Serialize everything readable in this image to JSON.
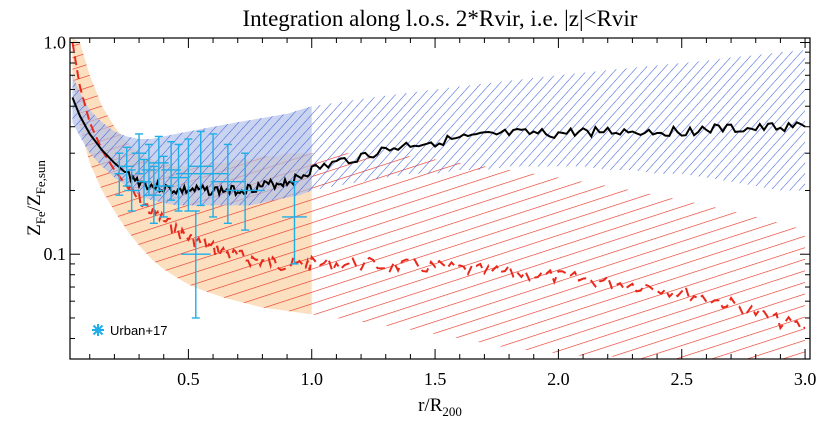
{
  "chart_data": {
    "type": "line",
    "title": "Integration along l.o.s. 2*Rvir, i.e. |z|<Rvir",
    "xlabel": {
      "main": "r/R",
      "sub": "200"
    },
    "ylabel": {
      "main1": "Z",
      "sub1": "Fe",
      "mid": "/Z",
      "sub2": "Fe,sun"
    },
    "xlim": [
      0.02,
      3.02
    ],
    "ylim": [
      0.032,
      1.05
    ],
    "y_scale": "log",
    "x_ticks": [
      0.5,
      1.0,
      1.5,
      2.0,
      2.5,
      3.0
    ],
    "x_tick_labels": [
      "0.5",
      "1.0",
      "1.5",
      "2.0",
      "2.5",
      "3.0"
    ],
    "y_ticks": [
      0.1,
      1.0
    ],
    "y_tick_labels": [
      "0.1",
      "1.0"
    ],
    "legend": {
      "position": "bottom-left",
      "entries": [
        {
          "name": "Urban+17",
          "marker": "asterisk",
          "color": "#1eaee8"
        }
      ]
    },
    "series": [
      {
        "style": "solid-black",
        "x": [
          0.03,
          0.06,
          0.1,
          0.15,
          0.2,
          0.25,
          0.3,
          0.35,
          0.4,
          0.45,
          0.5,
          0.55,
          0.6,
          0.65,
          0.7,
          0.75,
          0.8,
          0.85,
          0.9,
          0.95,
          1.0,
          1.1,
          1.2,
          1.3,
          1.4,
          1.5,
          1.6,
          1.7,
          1.8,
          1.9,
          2.0,
          2.1,
          2.2,
          2.3,
          2.4,
          2.5,
          2.6,
          2.7,
          2.8,
          2.9,
          3.0
        ],
        "y": [
          0.55,
          0.45,
          0.37,
          0.31,
          0.27,
          0.24,
          0.22,
          0.21,
          0.205,
          0.2,
          0.2,
          0.2,
          0.2,
          0.2,
          0.2,
          0.205,
          0.21,
          0.215,
          0.22,
          0.23,
          0.25,
          0.27,
          0.29,
          0.31,
          0.33,
          0.34,
          0.35,
          0.36,
          0.37,
          0.37,
          0.37,
          0.38,
          0.38,
          0.38,
          0.38,
          0.38,
          0.39,
          0.39,
          0.39,
          0.4,
          0.4
        ],
        "lower": [
          0.42,
          0.36,
          0.3,
          0.26,
          0.23,
          0.21,
          0.19,
          0.18,
          0.175,
          0.17,
          0.17,
          0.17,
          0.17,
          0.17,
          0.17,
          0.17,
          0.175,
          0.18,
          0.185,
          0.19,
          0.2,
          0.21,
          0.22,
          0.23,
          0.24,
          0.24,
          0.25,
          0.25,
          0.26,
          0.26,
          0.26,
          0.26,
          0.25,
          0.25,
          0.24,
          0.24,
          0.23,
          0.22,
          0.21,
          0.2,
          0.2
        ],
        "upper": [
          0.7,
          0.58,
          0.48,
          0.42,
          0.38,
          0.36,
          0.35,
          0.35,
          0.36,
          0.37,
          0.38,
          0.39,
          0.4,
          0.41,
          0.42,
          0.43,
          0.44,
          0.45,
          0.46,
          0.48,
          0.5,
          0.52,
          0.54,
          0.56,
          0.58,
          0.6,
          0.62,
          0.64,
          0.66,
          0.68,
          0.7,
          0.72,
          0.74,
          0.76,
          0.78,
          0.8,
          0.82,
          0.85,
          0.87,
          0.9,
          0.92
        ]
      },
      {
        "style": "dashed-red",
        "x": [
          0.03,
          0.06,
          0.1,
          0.15,
          0.2,
          0.25,
          0.3,
          0.35,
          0.4,
          0.45,
          0.5,
          0.55,
          0.6,
          0.65,
          0.7,
          0.75,
          0.8,
          0.85,
          0.9,
          0.95,
          1.0,
          1.1,
          1.2,
          1.3,
          1.4,
          1.5,
          1.6,
          1.7,
          1.8,
          1.9,
          2.0,
          2.1,
          2.2,
          2.3,
          2.4,
          2.5,
          2.6,
          2.7,
          2.8,
          2.9,
          3.0
        ],
        "y": [
          1.0,
          0.62,
          0.42,
          0.31,
          0.25,
          0.21,
          0.18,
          0.16,
          0.145,
          0.13,
          0.12,
          0.113,
          0.107,
          0.102,
          0.098,
          0.095,
          0.093,
          0.091,
          0.09,
          0.089,
          0.09,
          0.09,
          0.09,
          0.088,
          0.088,
          0.087,
          0.085,
          0.083,
          0.082,
          0.08,
          0.078,
          0.076,
          0.074,
          0.072,
          0.07,
          0.066,
          0.062,
          0.058,
          0.053,
          0.048,
          0.045
        ],
        "lower": [
          0.7,
          0.4,
          0.27,
          0.2,
          0.16,
          0.13,
          0.11,
          0.095,
          0.085,
          0.078,
          0.072,
          0.068,
          0.065,
          0.062,
          0.06,
          0.058,
          0.056,
          0.055,
          0.054,
          0.053,
          0.052,
          0.05,
          0.048,
          0.046,
          0.044,
          0.042,
          0.04,
          0.038,
          0.036,
          0.035,
          0.034,
          0.033,
          0.033,
          0.032,
          0.032,
          0.032,
          0.032,
          0.032,
          0.032,
          0.032,
          0.032
        ],
        "upper": [
          1.05,
          1.0,
          0.7,
          0.5,
          0.4,
          0.34,
          0.3,
          0.28,
          0.27,
          0.26,
          0.26,
          0.26,
          0.27,
          0.27,
          0.28,
          0.28,
          0.29,
          0.29,
          0.3,
          0.3,
          0.3,
          0.3,
          0.3,
          0.29,
          0.29,
          0.28,
          0.27,
          0.26,
          0.25,
          0.24,
          0.23,
          0.22,
          0.21,
          0.2,
          0.19,
          0.18,
          0.17,
          0.16,
          0.15,
          0.14,
          0.13
        ]
      },
      {
        "name": "Urban+17",
        "style": "errorbar-points",
        "points": [
          {
            "x": 0.22,
            "y": 0.24,
            "xerr": 0.02,
            "ylo": 0.19,
            "yhi": 0.3
          },
          {
            "x": 0.25,
            "y": 0.26,
            "xerr": 0.03,
            "ylo": 0.21,
            "yhi": 0.32
          },
          {
            "x": 0.27,
            "y": 0.2,
            "xerr": 0.03,
            "ylo": 0.16,
            "yhi": 0.25
          },
          {
            "x": 0.3,
            "y": 0.3,
            "xerr": 0.03,
            "ylo": 0.24,
            "yhi": 0.37
          },
          {
            "x": 0.32,
            "y": 0.22,
            "xerr": 0.03,
            "ylo": 0.17,
            "yhi": 0.28
          },
          {
            "x": 0.34,
            "y": 0.25,
            "xerr": 0.03,
            "ylo": 0.19,
            "yhi": 0.33
          },
          {
            "x": 0.36,
            "y": 0.19,
            "xerr": 0.03,
            "ylo": 0.14,
            "yhi": 0.26
          },
          {
            "x": 0.38,
            "y": 0.27,
            "xerr": 0.04,
            "ylo": 0.2,
            "yhi": 0.36
          },
          {
            "x": 0.4,
            "y": 0.21,
            "xerr": 0.04,
            "ylo": 0.15,
            "yhi": 0.29
          },
          {
            "x": 0.43,
            "y": 0.25,
            "xerr": 0.04,
            "ylo": 0.18,
            "yhi": 0.34
          },
          {
            "x": 0.46,
            "y": 0.23,
            "xerr": 0.04,
            "ylo": 0.16,
            "yhi": 0.33
          },
          {
            "x": 0.5,
            "y": 0.24,
            "xerr": 0.05,
            "ylo": 0.16,
            "yhi": 0.35
          },
          {
            "x": 0.55,
            "y": 0.26,
            "xerr": 0.05,
            "ylo": 0.17,
            "yhi": 0.38
          },
          {
            "x": 0.6,
            "y": 0.24,
            "xerr": 0.06,
            "ylo": 0.15,
            "yhi": 0.37
          },
          {
            "x": 0.66,
            "y": 0.22,
            "xerr": 0.07,
            "ylo": 0.14,
            "yhi": 0.33
          },
          {
            "x": 0.73,
            "y": 0.2,
            "xerr": 0.08,
            "ylo": 0.13,
            "yhi": 0.3
          },
          {
            "x": 0.53,
            "y": 0.1,
            "xerr": 0.06,
            "ylo": 0.05,
            "yhi": 0.16
          },
          {
            "x": 0.93,
            "y": 0.15,
            "xerr": 0.05,
            "ylo": 0.09,
            "yhi": 0.22
          }
        ]
      }
    ],
    "colors": {
      "red": "#e8291c",
      "blue": "#3d62d9",
      "cyan": "#1eaee8",
      "black": "#000000",
      "orange_fill": "#fbd9b4",
      "blue_fill": "#b3c2ea"
    }
  }
}
